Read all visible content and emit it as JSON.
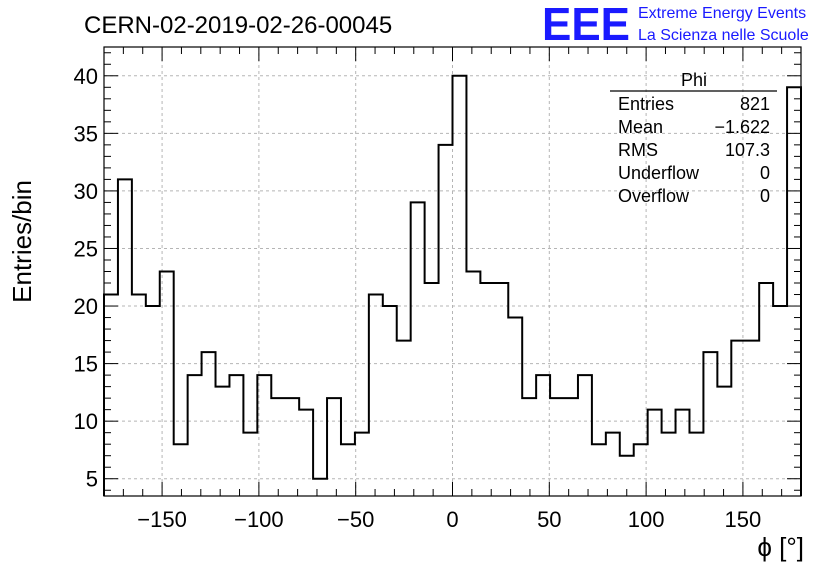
{
  "chart_data": {
    "type": "histogram",
    "title": "CERN-02-2019-02-26-00045",
    "xlabel": "ϕ [°]",
    "ylabel": "Entries/bin",
    "xlim": [
      -180,
      180
    ],
    "ylim": [
      3.5,
      42.5
    ],
    "x_ticks": [
      -150,
      -100,
      -50,
      0,
      50,
      100,
      150
    ],
    "x_tick_labels": [
      "−150",
      "−100",
      "−50",
      "0",
      "50",
      "100",
      "150"
    ],
    "y_ticks": [
      5,
      10,
      15,
      20,
      25,
      30,
      35,
      40
    ],
    "y_tick_labels": [
      "5",
      "10",
      "15",
      "20",
      "25",
      "30",
      "35",
      "40"
    ],
    "grid": true,
    "bin_width": 7.2,
    "bin_edges_start": -180,
    "counts": [
      21,
      31,
      21,
      20,
      23,
      8,
      14,
      16,
      13,
      14,
      9,
      14,
      12,
      12,
      11,
      5,
      12,
      8,
      9,
      21,
      20,
      17,
      29,
      22,
      34,
      40,
      23,
      22,
      22,
      19,
      12,
      14,
      12,
      12,
      14,
      8,
      9,
      7,
      8,
      11,
      9,
      11,
      9,
      16,
      13,
      17,
      17,
      22,
      20,
      39
    ],
    "stats_box": {
      "title": "Phi",
      "rows": [
        {
          "label": "Entries",
          "value": "821"
        },
        {
          "label": "Mean",
          "value": "−1.622"
        },
        {
          "label": "RMS",
          "value": "107.3"
        },
        {
          "label": "Underflow",
          "value": "0"
        },
        {
          "label": "Overflow",
          "value": "0"
        }
      ]
    }
  },
  "logo": {
    "mark": "EEE",
    "line1": "Extreme Energy Events",
    "line2": "La Scienza nelle Scuole",
    "color": "#1a1aff"
  }
}
